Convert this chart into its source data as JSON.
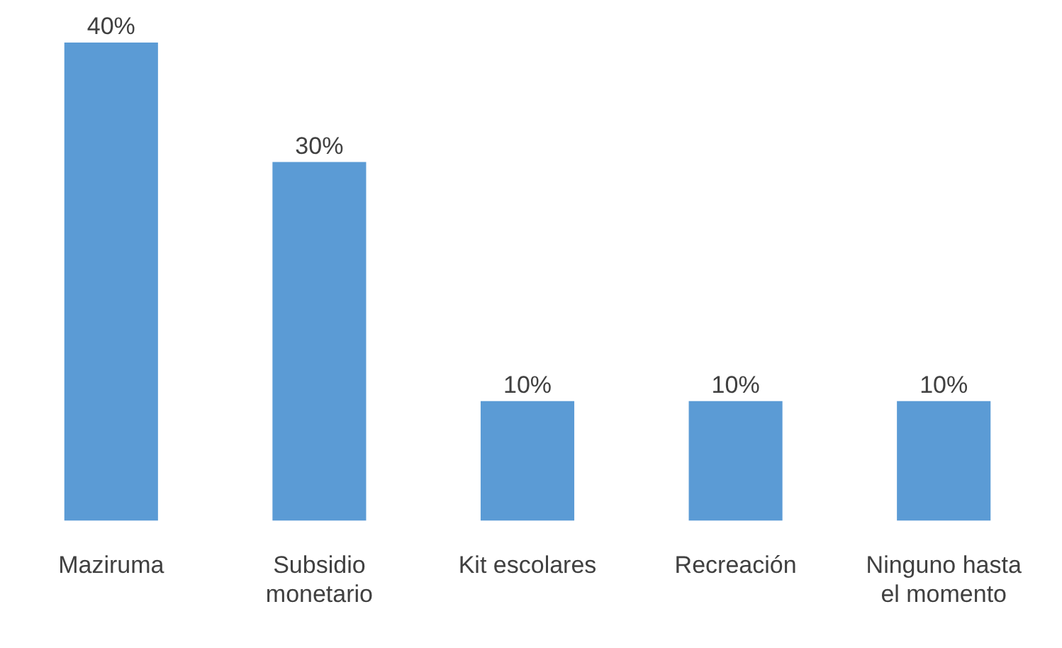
{
  "chart_data": {
    "type": "bar",
    "categories": [
      "Maziruma",
      "Subsidio monetario",
      "Kit escolares",
      "Recreación",
      "Ninguno hasta el momento"
    ],
    "values": [
      40,
      30,
      10,
      10,
      10
    ],
    "color": "#5b9bd5",
    "value_labels": [
      "40%",
      "30%",
      "10%",
      "10%",
      "10%"
    ],
    "grid": false,
    "legend": false,
    "tick_labels": "x"
  }
}
